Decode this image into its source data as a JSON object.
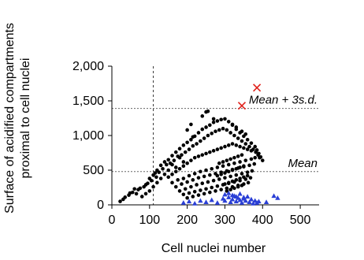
{
  "chart_data": {
    "type": "scatter",
    "title": "",
    "xlabel": "Cell nuclei number",
    "ylabel_lines": [
      "Surface of acidified compartments",
      "proximal to cell nuclei"
    ],
    "xlim": [
      0,
      550
    ],
    "ylim": [
      0,
      2000
    ],
    "xticks": [
      0,
      100,
      200,
      300,
      400,
      500
    ],
    "yticks": [
      0,
      500,
      1000,
      1500,
      2000
    ],
    "xtick_labels": [
      "0",
      "100",
      "200",
      "300",
      "400",
      "500"
    ],
    "ytick_labels": [
      "0",
      "500",
      "1,000",
      "1,500",
      "2,000"
    ],
    "grid": false,
    "reference_lines": {
      "horizontal": [
        {
          "label": "Mean + 3s.d.",
          "y": 1390
        },
        {
          "label": "Mean",
          "y": 480
        }
      ],
      "vertical": [
        {
          "x": 110
        }
      ]
    },
    "colors": {
      "black_series": "#000000",
      "blue_series": "#2a3fd6",
      "red_series": "#e0201a",
      "ref_line": "#666666"
    },
    "series": [
      {
        "marker": "circle",
        "color": "#000000",
        "points": [
          [
            22,
            50
          ],
          [
            35,
            110
          ],
          [
            48,
            170
          ],
          [
            60,
            230
          ],
          [
            70,
            220
          ],
          [
            85,
            260
          ],
          [
            95,
            310
          ],
          [
            100,
            380
          ],
          [
            110,
            430
          ],
          [
            115,
            460
          ],
          [
            120,
            500
          ],
          [
            130,
            570
          ],
          [
            140,
            620
          ],
          [
            150,
            650
          ],
          [
            160,
            710
          ],
          [
            170,
            760
          ],
          [
            180,
            810
          ],
          [
            190,
            860
          ],
          [
            200,
            900
          ],
          [
            210,
            940
          ],
          [
            220,
            990
          ],
          [
            230,
            1040
          ],
          [
            240,
            1090
          ],
          [
            250,
            1120
          ],
          [
            260,
            1150
          ],
          [
            270,
            1190
          ],
          [
            280,
            1210
          ],
          [
            290,
            1230
          ],
          [
            300,
            1240
          ],
          [
            310,
            1200
          ],
          [
            320,
            1150
          ],
          [
            330,
            1090
          ],
          [
            340,
            1040
          ],
          [
            350,
            990
          ],
          [
            360,
            940
          ],
          [
            370,
            890
          ],
          [
            380,
            840
          ],
          [
            385,
            790
          ],
          [
            390,
            740
          ],
          [
            395,
            690
          ],
          [
            400,
            640
          ],
          [
            30,
            80
          ],
          [
            45,
            140
          ],
          [
            55,
            180
          ],
          [
            65,
            160
          ],
          [
            75,
            240
          ],
          [
            90,
            290
          ],
          [
            105,
            350
          ],
          [
            118,
            400
          ],
          [
            125,
            470
          ],
          [
            135,
            520
          ],
          [
            145,
            580
          ],
          [
            155,
            600
          ],
          [
            165,
            640
          ],
          [
            175,
            700
          ],
          [
            185,
            720
          ],
          [
            195,
            760
          ],
          [
            205,
            800
          ],
          [
            215,
            850
          ],
          [
            225,
            880
          ],
          [
            235,
            920
          ],
          [
            245,
            960
          ],
          [
            255,
            1000
          ],
          [
            265,
            1030
          ],
          [
            275,
            1060
          ],
          [
            285,
            1080
          ],
          [
            295,
            1100
          ],
          [
            305,
            1080
          ],
          [
            315,
            1040
          ],
          [
            325,
            1000
          ],
          [
            335,
            960
          ],
          [
            345,
            920
          ],
          [
            355,
            880
          ],
          [
            365,
            840
          ],
          [
            375,
            800
          ],
          [
            382,
            760
          ],
          [
            388,
            720
          ],
          [
            392,
            680
          ],
          [
            150,
            400
          ],
          [
            160,
            440
          ],
          [
            170,
            480
          ],
          [
            180,
            520
          ],
          [
            190,
            560
          ],
          [
            200,
            600
          ],
          [
            210,
            640
          ],
          [
            220,
            680
          ],
          [
            230,
            700
          ],
          [
            240,
            720
          ],
          [
            250,
            740
          ],
          [
            260,
            760
          ],
          [
            270,
            780
          ],
          [
            280,
            800
          ],
          [
            290,
            820
          ],
          [
            300,
            840
          ],
          [
            310,
            860
          ],
          [
            320,
            880
          ],
          [
            330,
            860
          ],
          [
            340,
            840
          ],
          [
            350,
            820
          ],
          [
            360,
            800
          ],
          [
            370,
            780
          ],
          [
            160,
            320
          ],
          [
            175,
            360
          ],
          [
            190,
            380
          ],
          [
            205,
            420
          ],
          [
            220,
            450
          ],
          [
            235,
            480
          ],
          [
            250,
            500
          ],
          [
            265,
            520
          ],
          [
            280,
            540
          ],
          [
            295,
            560
          ],
          [
            310,
            580
          ],
          [
            325,
            600
          ],
          [
            340,
            620
          ],
          [
            355,
            640
          ],
          [
            370,
            660
          ],
          [
            380,
            680
          ],
          [
            170,
            260
          ],
          [
            185,
            300
          ],
          [
            200,
            330
          ],
          [
            215,
            360
          ],
          [
            230,
            390
          ],
          [
            245,
            410
          ],
          [
            260,
            430
          ],
          [
            275,
            450
          ],
          [
            290,
            470
          ],
          [
            305,
            490
          ],
          [
            320,
            510
          ],
          [
            335,
            530
          ],
          [
            350,
            550
          ],
          [
            365,
            570
          ],
          [
            378,
            590
          ],
          [
            180,
            200
          ],
          [
            195,
            230
          ],
          [
            210,
            260
          ],
          [
            225,
            290
          ],
          [
            240,
            310
          ],
          [
            255,
            330
          ],
          [
            270,
            350
          ],
          [
            285,
            370
          ],
          [
            300,
            390
          ],
          [
            315,
            410
          ],
          [
            330,
            430
          ],
          [
            345,
            450
          ],
          [
            360,
            470
          ],
          [
            372,
            490
          ],
          [
            190,
            150
          ],
          [
            205,
            170
          ],
          [
            220,
            190
          ],
          [
            235,
            210
          ],
          [
            250,
            230
          ],
          [
            265,
            250
          ],
          [
            280,
            270
          ],
          [
            295,
            290
          ],
          [
            310,
            310
          ],
          [
            325,
            330
          ],
          [
            340,
            350
          ],
          [
            355,
            370
          ],
          [
            368,
            390
          ],
          [
            200,
            100
          ],
          [
            215,
            120
          ],
          [
            230,
            140
          ],
          [
            245,
            160
          ],
          [
            260,
            180
          ],
          [
            275,
            200
          ],
          [
            290,
            220
          ],
          [
            305,
            240
          ],
          [
            320,
            260
          ],
          [
            335,
            280
          ],
          [
            350,
            300
          ],
          [
            362,
            320
          ],
          [
            280,
            420
          ],
          [
            290,
            440
          ],
          [
            300,
            460
          ],
          [
            310,
            480
          ],
          [
            320,
            500
          ],
          [
            330,
            520
          ],
          [
            340,
            540
          ],
          [
            350,
            560
          ],
          [
            285,
            600
          ],
          [
            295,
            620
          ],
          [
            305,
            640
          ],
          [
            315,
            660
          ],
          [
            325,
            680
          ],
          [
            335,
            700
          ],
          [
            345,
            720
          ],
          [
            300,
            300
          ],
          [
            310,
            320
          ],
          [
            320,
            340
          ],
          [
            330,
            360
          ],
          [
            340,
            380
          ],
          [
            350,
            400
          ],
          [
            360,
            420
          ],
          [
            305,
            200
          ],
          [
            315,
            220
          ],
          [
            325,
            240
          ],
          [
            335,
            260
          ],
          [
            345,
            280
          ],
          [
            240,
            1280
          ],
          [
            250,
            1340
          ],
          [
            255,
            1350
          ],
          [
            270,
            1240
          ],
          [
            210,
            1160
          ],
          [
            200,
            1080
          ],
          [
            215,
            980
          ],
          [
            320,
            1160
          ],
          [
            330,
            1120
          ],
          [
            345,
            1060
          ],
          [
            355,
            1020
          ],
          [
            190,
            620
          ],
          [
            180,
            680
          ],
          [
            170,
            540
          ],
          [
            160,
            580
          ],
          [
            150,
            500
          ],
          [
            140,
            440
          ],
          [
            130,
            380
          ],
          [
            120,
            320
          ],
          [
            110,
            260
          ],
          [
            100,
            200
          ],
          [
            90,
            160
          ],
          [
            80,
            120
          ]
        ]
      },
      {
        "marker": "triangle",
        "color": "#2a3fd6",
        "points": [
          [
            190,
            30
          ],
          [
            205,
            50
          ],
          [
            220,
            20
          ],
          [
            235,
            60
          ],
          [
            250,
            40
          ],
          [
            265,
            70
          ],
          [
            280,
            30
          ],
          [
            295,
            90
          ],
          [
            300,
            60
          ],
          [
            310,
            110
          ],
          [
            315,
            40
          ],
          [
            320,
            80
          ],
          [
            325,
            130
          ],
          [
            330,
            50
          ],
          [
            335,
            100
          ],
          [
            340,
            70
          ],
          [
            345,
            30
          ],
          [
            350,
            90
          ],
          [
            355,
            60
          ],
          [
            360,
            120
          ],
          [
            365,
            40
          ],
          [
            370,
            80
          ],
          [
            375,
            20
          ],
          [
            380,
            60
          ],
          [
            385,
            30
          ],
          [
            390,
            50
          ],
          [
            410,
            40
          ],
          [
            430,
            130
          ],
          [
            440,
            100
          ],
          [
            300,
            150
          ],
          [
            310,
            170
          ],
          [
            320,
            140
          ],
          [
            330,
            120
          ],
          [
            340,
            160
          ],
          [
            350,
            110
          ]
        ]
      },
      {
        "marker": "x",
        "color": "#e0201a",
        "points": [
          [
            345,
            1430
          ],
          [
            385,
            1690
          ]
        ]
      }
    ]
  }
}
